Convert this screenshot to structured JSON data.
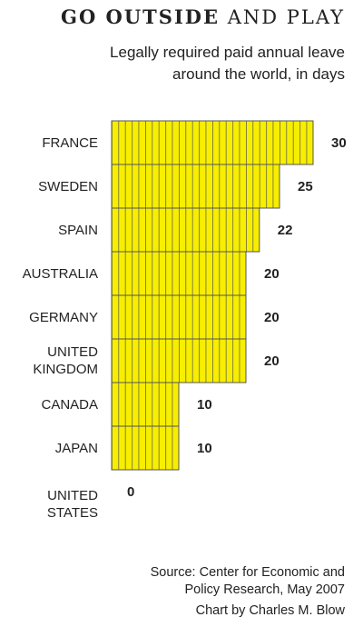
{
  "chart_data": {
    "type": "bar",
    "orientation": "horizontal",
    "title_parts": [
      "GO OUTSIDE",
      "AND PLAY"
    ],
    "subtitle_lines": [
      "Legally required paid annual leave",
      "around the world, in days"
    ],
    "categories": [
      "FRANCE",
      "SWEDEN",
      "SPAIN",
      "AUSTRALIA",
      "GERMANY",
      "UNITED KINGDOM",
      "CANADA",
      "JAPAN",
      "UNITED STATES"
    ],
    "values": [
      30,
      25,
      22,
      20,
      20,
      20,
      10,
      10,
      0
    ],
    "color": "#f7ee00",
    "source_lines": [
      "Source: Center for Economic and",
      "Policy Research, May 2007"
    ],
    "credit": "Chart by Charles M. Blow"
  }
}
